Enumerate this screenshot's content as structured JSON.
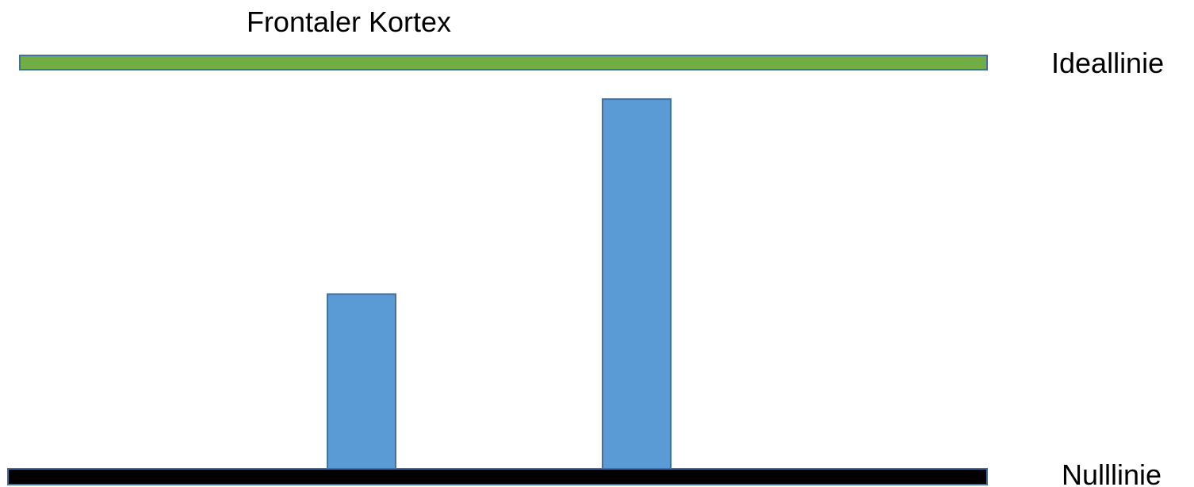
{
  "chart_data": {
    "type": "bar",
    "title": "Frontaler Kortex",
    "xlabel": "",
    "ylabel": "",
    "categories": [
      "",
      "",
      ""
    ],
    "values": [
      0,
      0.43,
      0.91
    ],
    "ylim": [
      0,
      1
    ],
    "grid": false,
    "legend": "none",
    "reference_lines": [
      {
        "label": "Ideallinie",
        "value": 1,
        "color": "#70AD47"
      },
      {
        "label": "Nulllinie",
        "value": 0,
        "color": "#000000"
      }
    ],
    "colors": {
      "bar_fill": "#5B9BD5",
      "bar_stroke": "#41719C",
      "line_stroke": "#41719C"
    }
  }
}
